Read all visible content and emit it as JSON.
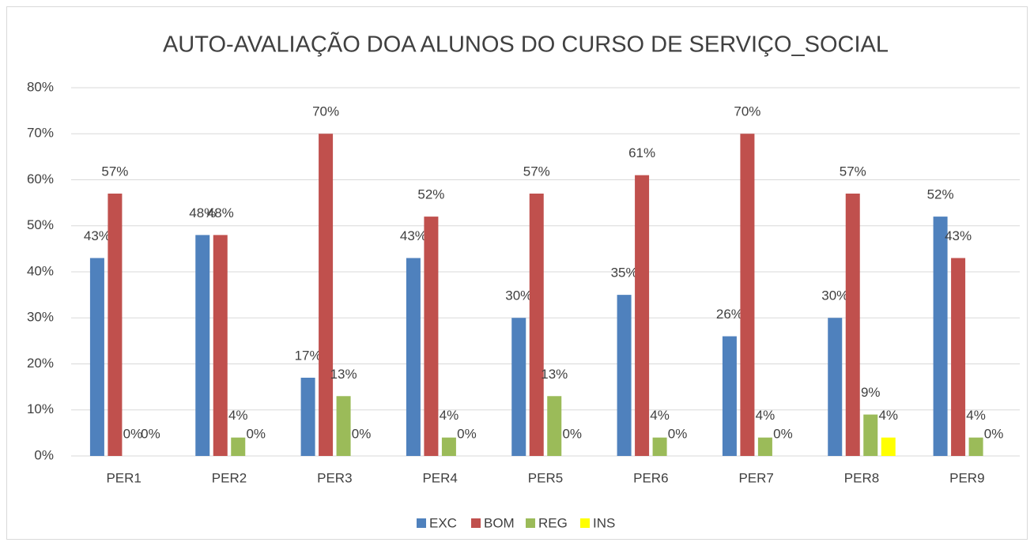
{
  "chart_data": {
    "type": "bar",
    "title": "AUTO-AVALIAÇÃO DOA ALUNOS  DO CURSO DE SERVIÇO_SOCIAL",
    "categories": [
      "PER1",
      "PER2",
      "PER3",
      "PER4",
      "PER5",
      "PER6",
      "PER7",
      "PER8",
      "PER9"
    ],
    "series": [
      {
        "name": "EXC",
        "color": "#4f81bd",
        "values": [
          43,
          48,
          17,
          43,
          30,
          35,
          26,
          30,
          52
        ],
        "value_labels": [
          "43%",
          "48%",
          "17%",
          "43%",
          "30%",
          "35%",
          "26%",
          "30%",
          "52%"
        ]
      },
      {
        "name": "BOM",
        "color": "#c0504d",
        "values": [
          57,
          48,
          70,
          52,
          57,
          61,
          70,
          57,
          43
        ],
        "value_labels": [
          "57%",
          "48%",
          "70%",
          "52%",
          "57%",
          "61%",
          "70%",
          "57%",
          "43%"
        ]
      },
      {
        "name": "REG",
        "color": "#9bbb59",
        "values": [
          0,
          4,
          13,
          4,
          13,
          4,
          4,
          9,
          4
        ],
        "value_labels": [
          "0%",
          "4%",
          "13%",
          "4%",
          "13%",
          "4%",
          "4%",
          "9%",
          "4%"
        ]
      },
      {
        "name": "INS",
        "color": "#ffff00",
        "values": [
          0,
          0,
          0,
          0,
          0,
          0,
          0,
          4,
          0
        ],
        "value_labels": [
          "0%",
          "0%",
          "0%",
          "0%",
          "0%",
          "0%",
          "0%",
          "4%",
          "0%"
        ]
      }
    ],
    "ylim": [
      0,
      80
    ],
    "yticks": [
      {
        "value": 0,
        "label": "0%"
      },
      {
        "value": 10,
        "label": "10%"
      },
      {
        "value": 20,
        "label": "20%"
      },
      {
        "value": 30,
        "label": "30%"
      },
      {
        "value": 40,
        "label": "40%"
      },
      {
        "value": 50,
        "label": "50%"
      },
      {
        "value": 60,
        "label": "60%"
      },
      {
        "value": 70,
        "label": "70%"
      },
      {
        "value": 80,
        "label": "80%"
      }
    ],
    "grid": true,
    "legend": "bottom"
  }
}
